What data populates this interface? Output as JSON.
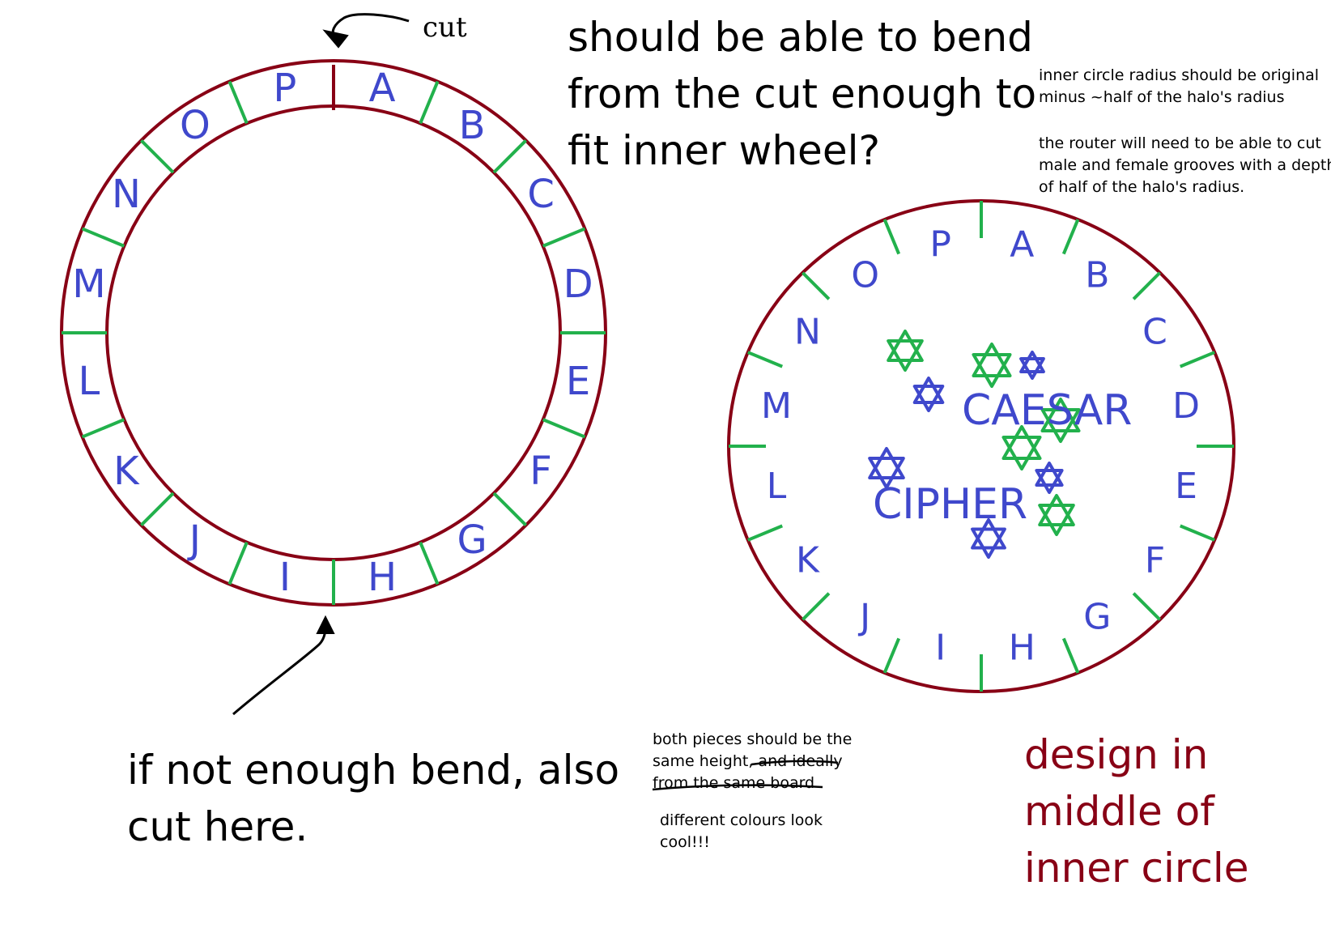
{
  "letters": [
    "A",
    "B",
    "C",
    "D",
    "E",
    "F",
    "G",
    "H",
    "I",
    "J",
    "K",
    "L",
    "M",
    "N",
    "O",
    "P"
  ],
  "annotations": {
    "cut_label": "cut",
    "bend_question_lines": [
      "should be able to bend",
      "from the cut enough to",
      "fit inner wheel?"
    ],
    "radius_note_lines": [
      "inner circle radius should be original",
      "minus ~half of  the halo's radius"
    ],
    "router_note_lines": [
      "the router will need to be able to cut",
      "male and female grooves with a depth",
      "of half of  the halo's radius."
    ],
    "bottom_cut_lines": [
      "if not enough bend, also",
      "cut here."
    ],
    "height_note": {
      "line1": "both pieces should be the",
      "line2_plain": "same height, ",
      "line2_struck": "and ideally",
      "line3_struck": "from the same board"
    },
    "colours_note_lines": [
      "different colours look",
      "cool!!!"
    ],
    "design_note_lines": [
      "design in",
      "middle of",
      "inner circle"
    ]
  },
  "inner_wheel": {
    "words": [
      "CAESAR",
      "CIPHER"
    ]
  },
  "colors": {
    "ring": "#880015",
    "tick": "#22b14c",
    "letter": "#3f48cc",
    "star_blue": "#3f48cc",
    "star_green": "#22b14c",
    "ink": "#000000"
  }
}
